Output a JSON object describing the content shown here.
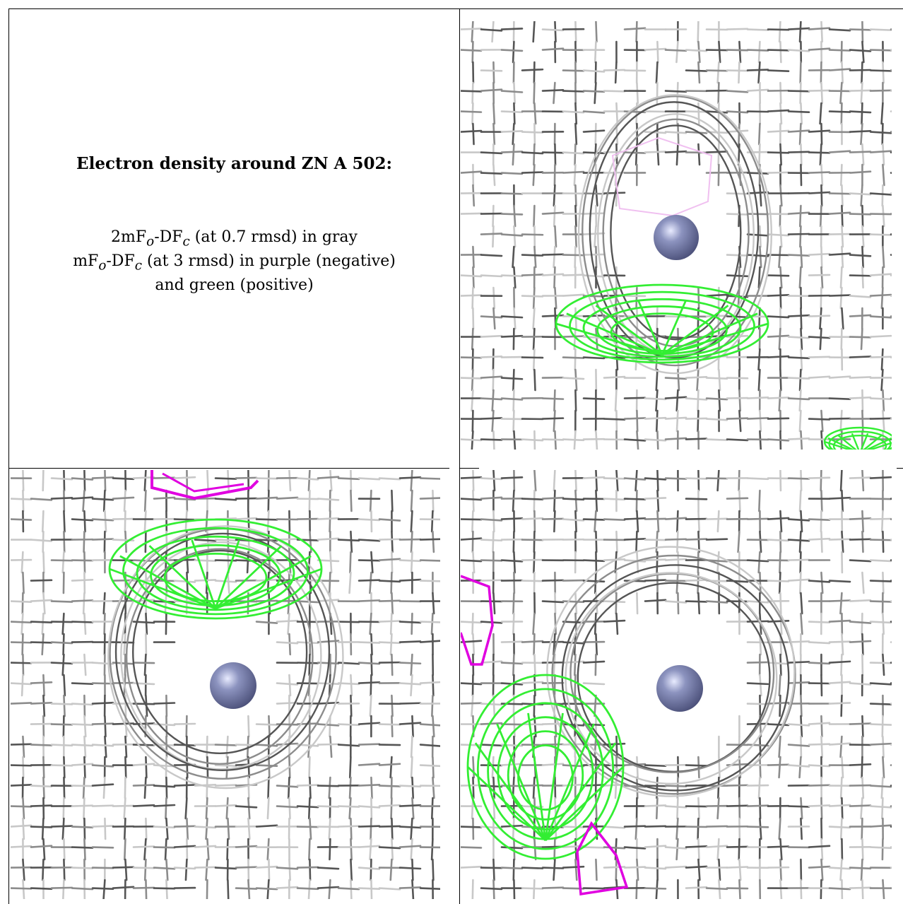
{
  "caption": {
    "title": "Electron density around ZN A 502:",
    "line1": "2mF",
    "line1_sub1": "o",
    "line1_mid": "-DF",
    "line1_sub2": "c",
    "line1_tail": " (at 0.7 rmsd) in gray",
    "line2": "mF",
    "line2_sub1": "o",
    "line2_mid": "-DF",
    "line2_sub2": "c",
    "line2_tail": " (at 3 rmsd) in purple (negative)",
    "line3": "and green (positive)"
  },
  "colors": {
    "gray_mesh": "#8c8c8c",
    "dark_mesh": "#555555",
    "light_mesh": "#c8c8c8",
    "negative": "#e000e0",
    "negative_faint": "#f0c0f0",
    "positive": "#33ee33",
    "atom": "#8c93bf"
  },
  "panels": [
    {
      "name": "view-1",
      "atom": "ZN",
      "positive_blob": "lower",
      "negative_blob": "faint-upper"
    },
    {
      "name": "view-2",
      "atom": "ZN",
      "positive_blob": "upper",
      "negative_blob": "top"
    },
    {
      "name": "view-3",
      "atom": "ZN",
      "positive_blob": "lower-left",
      "negative_blob": "left-and-bottom"
    }
  ]
}
